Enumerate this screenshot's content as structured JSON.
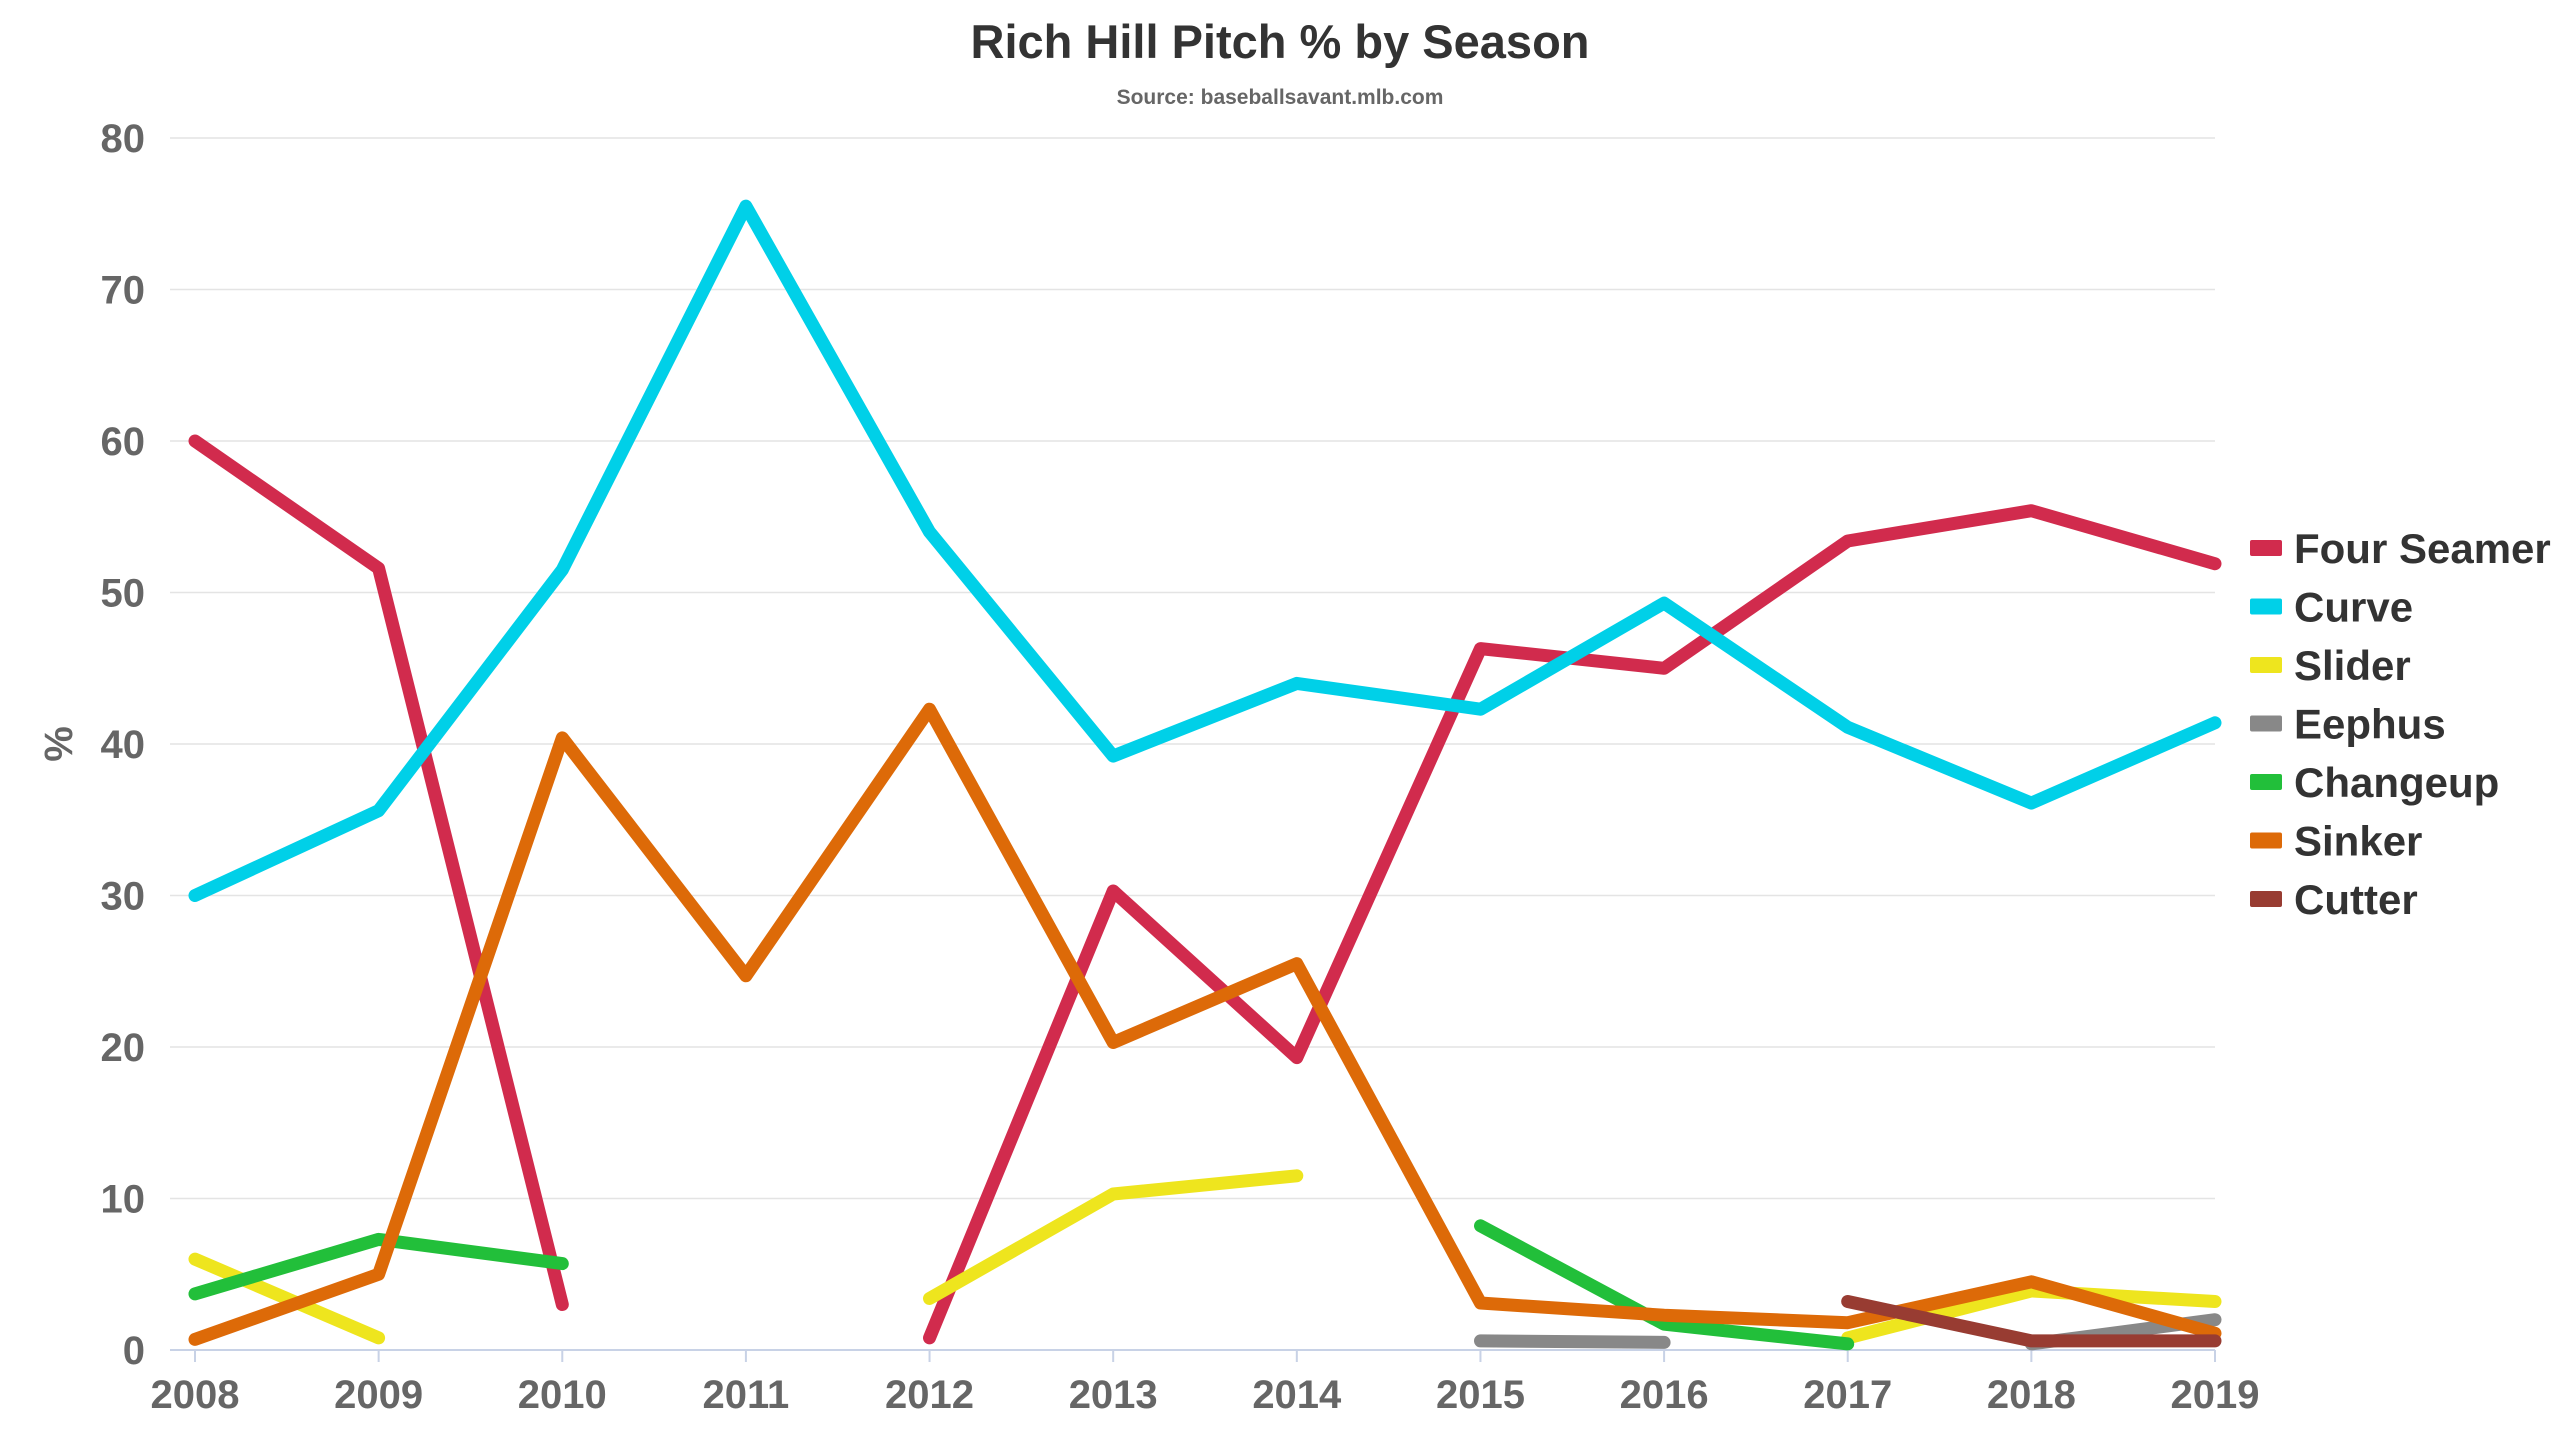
{
  "chart_data": {
    "type": "line",
    "title": "Rich Hill Pitch % by Season",
    "subtitle": "Source: baseballsavant.mlb.com",
    "xlabel": "",
    "ylabel": "%",
    "ylim": [
      0,
      80
    ],
    "yticks": [
      0,
      10,
      20,
      30,
      40,
      50,
      60,
      70,
      80
    ],
    "categories": [
      "2008",
      "2009",
      "2010",
      "2011",
      "2012",
      "2013",
      "2014",
      "2015",
      "2016",
      "2017",
      "2018",
      "2019"
    ],
    "grid": true,
    "legend_position": "right",
    "series": [
      {
        "name": "Four Seamer",
        "color": "#d12b4d",
        "values": [
          60,
          51.6,
          3,
          null,
          0.8,
          30.3,
          19.3,
          46.3,
          45,
          53.4,
          55.4,
          51.9
        ]
      },
      {
        "name": "Curve",
        "color": "#00d0e8",
        "values": [
          30,
          35.6,
          51.5,
          75.5,
          54,
          39.2,
          44,
          42.3,
          49.3,
          41.1,
          36.1,
          41.4
        ]
      },
      {
        "name": "Slider",
        "color": "#eee51e",
        "values": [
          6,
          0.8,
          null,
          null,
          3.4,
          10.3,
          11.5,
          null,
          null,
          0.8,
          3.9,
          3.2
        ]
      },
      {
        "name": "Eephus",
        "color": "#888888",
        "values": [
          null,
          null,
          null,
          null,
          null,
          null,
          null,
          0.6,
          0.5,
          null,
          0.4,
          2
        ]
      },
      {
        "name": "Changeup",
        "color": "#22bf3a",
        "values": [
          3.7,
          7.3,
          5.7,
          null,
          null,
          null,
          null,
          8.2,
          1.7,
          0.4,
          null,
          null
        ]
      },
      {
        "name": "Sinker",
        "color": "#dd6a08",
        "values": [
          0.7,
          5,
          40.4,
          24.7,
          42.3,
          20.3,
          25.5,
          3.1,
          2.3,
          1.8,
          4.5,
          1.1
        ]
      },
      {
        "name": "Cutter",
        "color": "#983c32",
        "values": [
          null,
          null,
          null,
          null,
          null,
          null,
          null,
          null,
          null,
          3.2,
          0.6,
          0.6
        ]
      }
    ]
  }
}
